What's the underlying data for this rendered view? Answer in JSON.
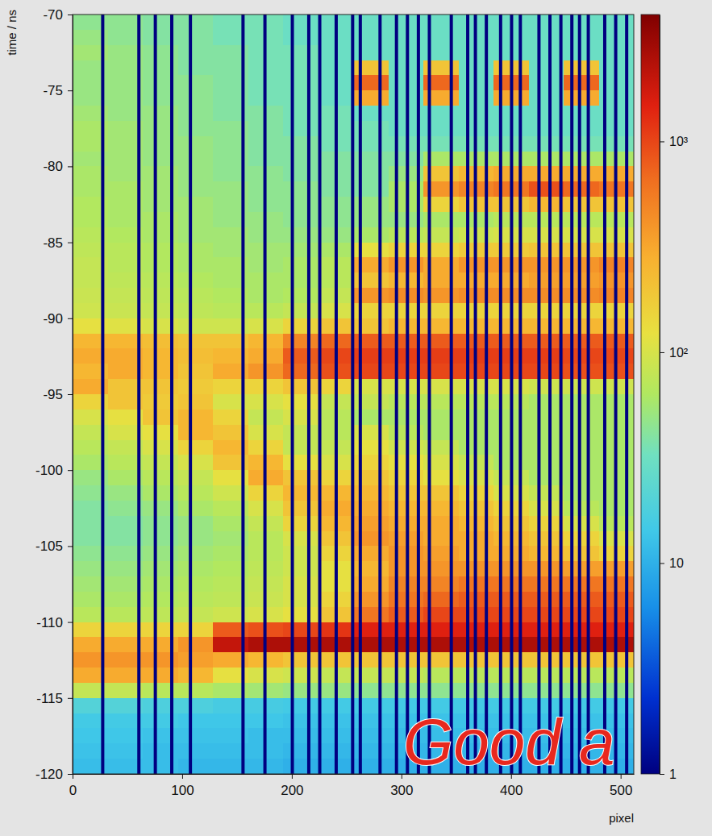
{
  "chart_data": {
    "type": "heatmap",
    "xlabel": "pixel",
    "ylabel": "time / ns",
    "xlim": [
      0,
      512
    ],
    "ylim": [
      -120,
      -70
    ],
    "xticks": [
      0,
      100,
      200,
      300,
      400,
      500
    ],
    "yticks": [
      -120,
      -115,
      -110,
      -105,
      -100,
      -95,
      -90,
      -85,
      -80,
      -75,
      -70
    ],
    "x_edges": [
      0,
      32,
      64,
      96,
      128,
      160,
      192,
      224,
      256,
      288,
      320,
      352,
      384,
      416,
      448,
      480,
      512
    ],
    "y_edges": [
      -70,
      -71,
      -72,
      -73,
      -74,
      -75,
      -76,
      -77,
      -78,
      -79,
      -80,
      -81,
      -82,
      -83,
      -84,
      -85,
      -86,
      -87,
      -88,
      -89,
      -90,
      -91,
      -92,
      -93,
      -94,
      -95,
      -96,
      -97,
      -98,
      -99,
      -100,
      -101,
      -102,
      -103,
      -104,
      -105,
      -106,
      -107,
      -108,
      -109,
      -110,
      -111,
      -112,
      -113,
      -114,
      -115,
      -116,
      -117,
      -118,
      -119,
      -120
    ],
    "cells": [
      [
        45,
        45,
        40,
        40,
        35,
        35,
        30,
        30,
        30,
        30,
        30,
        30,
        30,
        30,
        30,
        30
      ],
      [
        50,
        45,
        40,
        40,
        35,
        35,
        30,
        30,
        30,
        30,
        30,
        30,
        30,
        30,
        30,
        30
      ],
      [
        55,
        50,
        45,
        40,
        40,
        35,
        35,
        30,
        30,
        30,
        30,
        30,
        30,
        30,
        30,
        30
      ],
      [
        50,
        50,
        45,
        40,
        40,
        35,
        35,
        30,
        200,
        30,
        200,
        30,
        200,
        30,
        200,
        30
      ],
      [
        50,
        50,
        45,
        45,
        40,
        35,
        35,
        30,
        700,
        30,
        700,
        30,
        700,
        30,
        700,
        30
      ],
      [
        50,
        50,
        45,
        45,
        40,
        35,
        35,
        30,
        300,
        30,
        300,
        30,
        300,
        30,
        300,
        30
      ],
      [
        55,
        50,
        50,
        45,
        40,
        40,
        35,
        35,
        30,
        30,
        30,
        30,
        30,
        30,
        30,
        30
      ],
      [
        60,
        55,
        50,
        45,
        45,
        40,
        35,
        35,
        35,
        30,
        30,
        30,
        30,
        30,
        30,
        30
      ],
      [
        60,
        55,
        50,
        50,
        45,
        40,
        40,
        35,
        35,
        35,
        35,
        35,
        35,
        35,
        35,
        35
      ],
      [
        55,
        55,
        50,
        50,
        45,
        40,
        40,
        40,
        40,
        40,
        60,
        60,
        60,
        60,
        60,
        60
      ],
      [
        60,
        55,
        55,
        50,
        45,
        45,
        40,
        40,
        40,
        50,
        200,
        250,
        300,
        300,
        300,
        300
      ],
      [
        60,
        60,
        55,
        50,
        50,
        45,
        45,
        40,
        40,
        60,
        400,
        500,
        600,
        900,
        700,
        600
      ],
      [
        65,
        60,
        55,
        55,
        50,
        45,
        45,
        45,
        50,
        60,
        150,
        200,
        200,
        250,
        200,
        200
      ],
      [
        65,
        60,
        60,
        55,
        50,
        50,
        45,
        45,
        50,
        50,
        60,
        60,
        70,
        70,
        70,
        70
      ],
      [
        70,
        65,
        60,
        55,
        55,
        50,
        50,
        50,
        60,
        70,
        80,
        90,
        100,
        100,
        100,
        100
      ],
      [
        75,
        70,
        65,
        60,
        55,
        55,
        55,
        60,
        120,
        150,
        150,
        180,
        180,
        200,
        200,
        200
      ],
      [
        80,
        70,
        65,
        60,
        60,
        55,
        60,
        70,
        300,
        400,
        300,
        400,
        400,
        400,
        400,
        500
      ],
      [
        80,
        75,
        70,
        65,
        60,
        60,
        60,
        70,
        200,
        250,
        300,
        300,
        300,
        350,
        350,
        400
      ],
      [
        85,
        80,
        75,
        70,
        65,
        60,
        65,
        80,
        400,
        450,
        400,
        450,
        450,
        450,
        450,
        500
      ],
      [
        90,
        85,
        80,
        75,
        70,
        70,
        80,
        100,
        150,
        150,
        150,
        150,
        150,
        150,
        150,
        150
      ],
      [
        120,
        110,
        100,
        90,
        90,
        100,
        150,
        200,
        200,
        250,
        250,
        250,
        250,
        250,
        250,
        250
      ],
      [
        250,
        250,
        220,
        200,
        200,
        250,
        500,
        700,
        800,
        800,
        800,
        800,
        800,
        800,
        800,
        800
      ],
      [
        300,
        300,
        250,
        220,
        250,
        300,
        800,
        1000,
        1100,
        1100,
        1100,
        1100,
        1100,
        1100,
        1000,
        1000
      ],
      [
        250,
        300,
        250,
        200,
        300,
        400,
        700,
        900,
        1000,
        1000,
        1000,
        1000,
        1000,
        1000,
        900,
        900
      ],
      [
        300,
        200,
        200,
        180,
        150,
        150,
        200,
        150,
        100,
        100,
        100,
        100,
        100,
        90,
        90,
        90
      ],
      [
        150,
        200,
        180,
        200,
        100,
        100,
        120,
        80,
        80,
        70,
        70,
        70,
        70,
        60,
        60,
        60
      ],
      [
        100,
        120,
        200,
        250,
        150,
        80,
        100,
        70,
        60,
        60,
        60,
        60,
        60,
        60,
        60,
        60
      ],
      [
        80,
        100,
        120,
        250,
        200,
        100,
        80,
        70,
        100,
        70,
        60,
        60,
        60,
        60,
        60,
        60
      ],
      [
        70,
        80,
        100,
        150,
        250,
        150,
        80,
        80,
        120,
        90,
        80,
        60,
        60,
        60,
        60,
        60
      ],
      [
        60,
        70,
        80,
        100,
        200,
        250,
        120,
        100,
        150,
        120,
        100,
        80,
        60,
        60,
        60,
        60
      ],
      [
        50,
        60,
        70,
        80,
        120,
        300,
        200,
        150,
        200,
        150,
        120,
        100,
        80,
        60,
        60,
        60
      ],
      [
        45,
        50,
        60,
        70,
        90,
        150,
        250,
        250,
        250,
        200,
        200,
        150,
        100,
        80,
        60,
        60
      ],
      [
        40,
        45,
        50,
        60,
        70,
        100,
        200,
        300,
        300,
        250,
        250,
        200,
        150,
        100,
        70,
        60
      ],
      [
        40,
        40,
        45,
        50,
        60,
        80,
        150,
        250,
        350,
        300,
        300,
        250,
        200,
        150,
        100,
        70
      ],
      [
        40,
        40,
        45,
        50,
        55,
        70,
        100,
        200,
        400,
        350,
        300,
        300,
        250,
        200,
        150,
        100
      ],
      [
        45,
        45,
        50,
        55,
        60,
        70,
        90,
        150,
        300,
        400,
        350,
        300,
        300,
        250,
        200,
        150
      ],
      [
        50,
        50,
        55,
        60,
        65,
        75,
        90,
        120,
        250,
        400,
        400,
        400,
        400,
        400,
        350,
        350
      ],
      [
        55,
        55,
        60,
        65,
        70,
        80,
        100,
        120,
        300,
        500,
        500,
        600,
        600,
        600,
        600,
        600
      ],
      [
        60,
        60,
        65,
        70,
        75,
        85,
        100,
        150,
        400,
        600,
        700,
        800,
        800,
        800,
        800,
        800
      ],
      [
        70,
        70,
        75,
        80,
        90,
        100,
        120,
        200,
        600,
        800,
        1000,
        1000,
        1000,
        1000,
        1000,
        1000
      ],
      [
        150,
        150,
        150,
        150,
        800,
        900,
        1000,
        1200,
        1500,
        1500,
        1500,
        1500,
        1500,
        1500,
        1500,
        1500
      ],
      [
        300,
        300,
        300,
        400,
        2000,
        2500,
        2500,
        2500,
        2500,
        2500,
        2500,
        2500,
        2500,
        2500,
        2500,
        2500
      ],
      [
        400,
        400,
        400,
        350,
        300,
        250,
        200,
        200,
        200,
        200,
        200,
        200,
        200,
        200,
        200,
        200
      ],
      [
        300,
        300,
        300,
        250,
        120,
        100,
        90,
        80,
        80,
        80,
        70,
        70,
        70,
        70,
        70,
        70
      ],
      [
        80,
        80,
        70,
        70,
        60,
        55,
        50,
        50,
        45,
        45,
        45,
        45,
        45,
        45,
        45,
        45
      ],
      [
        20,
        20,
        18,
        18,
        16,
        16,
        15,
        15,
        15,
        15,
        15,
        15,
        15,
        15,
        15,
        15
      ],
      [
        15,
        15,
        15,
        14,
        14,
        14,
        13,
        13,
        13,
        13,
        13,
        13,
        13,
        13,
        13,
        13
      ],
      [
        14,
        14,
        13,
        13,
        13,
        12,
        12,
        12,
        12,
        12,
        12,
        12,
        12,
        12,
        12,
        12
      ],
      [
        13,
        13,
        12,
        12,
        12,
        12,
        11,
        11,
        11,
        11,
        11,
        11,
        11,
        11,
        11,
        11
      ],
      [
        12,
        12,
        12,
        11,
        11,
        11,
        10,
        10,
        10,
        10,
        10,
        10,
        10,
        10,
        10,
        10
      ]
    ],
    "masked_pixels": [
      27,
      60,
      75,
      90,
      107,
      155,
      175,
      200,
      215,
      225,
      240,
      255,
      262,
      280,
      295,
      305,
      315,
      325,
      345,
      360,
      367,
      377,
      390,
      400,
      408,
      425,
      435,
      445,
      455,
      462,
      470,
      485,
      495,
      505
    ],
    "colorbar": {
      "range": [
        1,
        4000
      ],
      "log": true,
      "ticks": [
        1,
        10,
        {
          "value": 100,
          "label": "10²"
        },
        {
          "value": 1000,
          "label": "10³"
        }
      ]
    },
    "annotations": [
      "Good a"
    ]
  }
}
